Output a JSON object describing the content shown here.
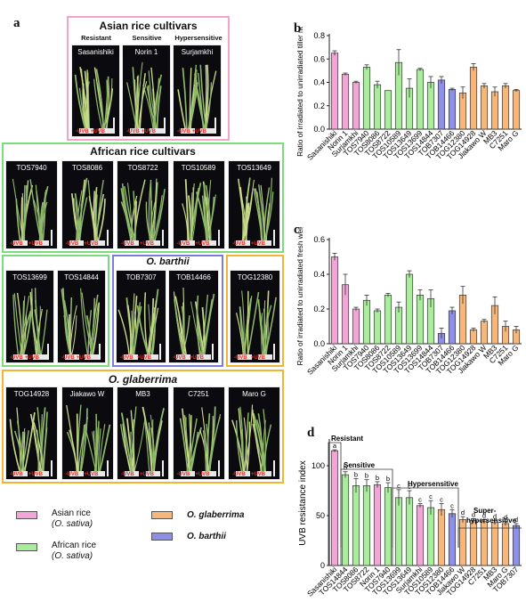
{
  "panel_a": {
    "letter": "a",
    "asian": {
      "title": "Asian rice cultivars",
      "categories": [
        "Resistant",
        "Sensitive",
        "Hypersensitive"
      ],
      "photos": [
        "Sasanishiki",
        "Norin 1",
        "Surjamkhi"
      ]
    },
    "african": {
      "title": "African rice cultivars",
      "photos_row1": [
        "TOS7940",
        "TOS8086",
        "TOS8722",
        "TOS10589",
        "TOS13649"
      ],
      "photos_row2": [
        "TOS13699",
        "TOS14844"
      ]
    },
    "barthii": {
      "title": "O. barthii",
      "photos": [
        "TOB7307",
        "TOB14466"
      ]
    },
    "glaberrima": {
      "title": "O. glaberrima",
      "photos_top": [
        "TOG12380"
      ],
      "photos_bottom": [
        "TOG14928",
        "Jiakawo W",
        "MB3",
        "C7251",
        "Maro G"
      ]
    },
    "uv_minus": "-UVB",
    "uv_plus": "+UVB"
  },
  "legend": {
    "items": [
      {
        "label": "Asian rice",
        "sub": "(O. sativa)",
        "color": "#f2a6d8"
      },
      {
        "label": "O. glaberrima",
        "sub": "",
        "color": "#f7b77a"
      },
      {
        "label": "African rice",
        "sub": "(O. sativa)",
        "color": "#a8ec9c"
      },
      {
        "label": "O. barthii",
        "sub": "",
        "color": "#8e8fe6"
      }
    ]
  },
  "colors": {
    "asian": "#f2a6d8",
    "african": "#a8ec9c",
    "barthii": "#8e8fe6",
    "glaberrima": "#f7b77a",
    "asian_border": "#f5a3c7",
    "african_border": "#7bdc7b",
    "barthii_border": "#7b7be0",
    "glaberrima_border": "#f2b431"
  },
  "chart_data": [
    {
      "panel": "b",
      "type": "bar",
      "ylabel": "Ratio of irradiated to unirradiated tiller number",
      "ylim": [
        0,
        0.8
      ],
      "yticks": [
        "0.0",
        "0.2",
        "0.4",
        "0.6",
        "0.8"
      ],
      "categories": [
        "Sasanishiki",
        "Norin 1",
        "Surjamkhi",
        "TOS7940",
        "TOS8086",
        "TOS8722",
        "TOS10589",
        "TOS13649",
        "TOS13699",
        "TOS14844",
        "TOB7307",
        "TOB14466",
        "TOG12380",
        "TOG14928",
        "Jiakawo W",
        "MB3",
        "C7251",
        "Maro G"
      ],
      "groups": [
        "asian",
        "asian",
        "asian",
        "african",
        "african",
        "african",
        "african",
        "african",
        "african",
        "african",
        "barthii",
        "barthii",
        "glaberrima",
        "glaberrima",
        "glaberrima",
        "glaberrima",
        "glaberrima",
        "glaberrima"
      ],
      "values": [
        0.65,
        0.47,
        0.4,
        0.53,
        0.38,
        0.33,
        0.57,
        0.35,
        0.51,
        0.4,
        0.42,
        0.34,
        0.31,
        0.53,
        0.37,
        0.32,
        0.37,
        0.33
      ],
      "errors": [
        0.02,
        0.01,
        0.01,
        0.02,
        0.03,
        0.0,
        0.11,
        0.08,
        0.01,
        0.05,
        0.03,
        0.01,
        0.05,
        0.03,
        0.02,
        0.04,
        0.02,
        0.01
      ]
    },
    {
      "panel": "c",
      "type": "bar",
      "ylabel": "Ratio of irradiated to unirradiated fresh weight",
      "ylim": [
        0,
        0.6
      ],
      "yticks": [
        "0.0",
        "0.2",
        "0.4",
        "0.6"
      ],
      "categories": [
        "Sasanishiki",
        "Norin 1",
        "Surjamkhi",
        "TOS7940",
        "TOS8086",
        "TOS8722",
        "TOS10589",
        "TOS13649",
        "TOS13699",
        "TOS14844",
        "TOB7307",
        "TOB14466",
        "TOG12380",
        "TOG14928",
        "Jiakawo W",
        "MB3",
        "C7251",
        "Maro G"
      ],
      "groups": [
        "asian",
        "asian",
        "asian",
        "african",
        "african",
        "african",
        "african",
        "african",
        "african",
        "african",
        "barthii",
        "barthii",
        "glaberrima",
        "glaberrima",
        "glaberrima",
        "glaberrima",
        "glaberrima",
        "glaberrima"
      ],
      "values": [
        0.5,
        0.34,
        0.2,
        0.25,
        0.19,
        0.28,
        0.21,
        0.4,
        0.28,
        0.26,
        0.06,
        0.19,
        0.28,
        0.08,
        0.13,
        0.22,
        0.1,
        0.08
      ],
      "errors": [
        0.02,
        0.06,
        0.01,
        0.03,
        0.01,
        0.01,
        0.03,
        0.02,
        0.03,
        0.05,
        0.03,
        0.02,
        0.05,
        0.01,
        0.01,
        0.05,
        0.03,
        0.02
      ]
    },
    {
      "panel": "d",
      "type": "bar",
      "ylabel": "UVB resistance index",
      "ylim": [
        0,
        125
      ],
      "yticks": [
        "0",
        "50",
        "100"
      ],
      "categories": [
        "Sasanishiki",
        "TOS14844",
        "TOS8086",
        "TOS8722",
        "Norin 1",
        "TOS7940",
        "TOS13699",
        "TOS13649",
        "Surjamkhi",
        "TOS10589",
        "TOS12380",
        "TOB14466",
        "Jiakawo W",
        "TOG14928",
        "C7251",
        "MB3",
        "Maro G",
        "TOB7307"
      ],
      "groups": [
        "asian",
        "african",
        "african",
        "african",
        "asian",
        "african",
        "african",
        "african",
        "asian",
        "african",
        "glaberrima",
        "barthii",
        "glaberrima",
        "glaberrima",
        "glaberrima",
        "glaberrima",
        "glaberrima",
        "barthii"
      ],
      "values": [
        115,
        91,
        80,
        80,
        81,
        78,
        68,
        68,
        60,
        58,
        56,
        52,
        46,
        45,
        44,
        43,
        42,
        40
      ],
      "errors": [
        1,
        3,
        7,
        6,
        3,
        5,
        8,
        7,
        2,
        7,
        6,
        4,
        3,
        2,
        2,
        2,
        2,
        2
      ],
      "letters": [
        "a",
        "b",
        "b",
        "b",
        "b",
        "b",
        "c",
        "c",
        "c",
        "c",
        "c",
        "c",
        "d",
        "d",
        "d",
        "d",
        "d",
        "d"
      ],
      "bracket_labels": [
        "Resistant",
        "Sensitive",
        "Hypersensitive",
        "Super-",
        "hypersensitive"
      ]
    }
  ]
}
